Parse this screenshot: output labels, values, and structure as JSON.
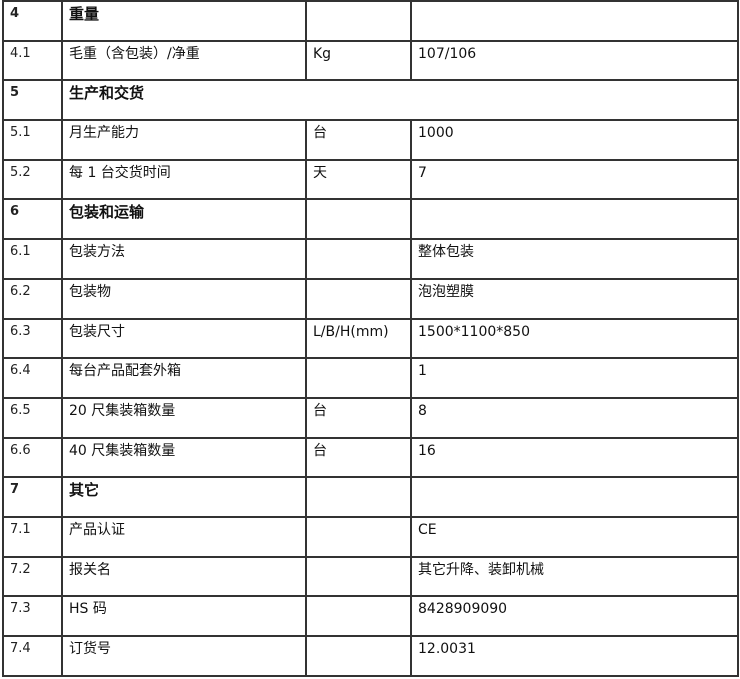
{
  "rows": [
    {
      "no": "4",
      "name": "重量",
      "unit": "",
      "value": "",
      "section": true
    },
    {
      "no": "4.1",
      "name": "毛重（含包装）/净重",
      "unit": "Kg",
      "value": "107/106"
    },
    {
      "no": "5",
      "name": "生产和交货",
      "section": true,
      "span": true
    },
    {
      "no": "5.1",
      "name": "月生产能力",
      "unit": "台",
      "value": "1000"
    },
    {
      "no": "5.2",
      "name": "每 1 台交货时间",
      "unit": "天",
      "value": "7"
    },
    {
      "no": "6",
      "name": "包装和运输",
      "unit": "",
      "value": "",
      "section": true
    },
    {
      "no": "6.1",
      "name": "包装方法",
      "unit": "",
      "value": "整体包装"
    },
    {
      "no": "6.2",
      "name": "包装物",
      "unit": "",
      "value": "泡泡塑膜"
    },
    {
      "no": "6.3",
      "name": "包装尺寸",
      "unit": "L/B/H(mm)",
      "value": "1500*1100*850"
    },
    {
      "no": "6.4",
      "name": "每台产品配套外箱",
      "unit": "",
      "value": "1"
    },
    {
      "no": "6.5",
      "name": "20 尺集装箱数量",
      "unit": "台",
      "value": "8"
    },
    {
      "no": "6.6",
      "name": "40 尺集装箱数量",
      "unit": "台",
      "value": "16"
    },
    {
      "no": "7",
      "name": "其它",
      "unit": "",
      "value": "",
      "section": true
    },
    {
      "no": "7.1",
      "name": "产品认证",
      "unit": "",
      "value": "CE"
    },
    {
      "no": "7.2",
      "name": "报关名",
      "unit": "",
      "value": "其它升降、装卸机械"
    },
    {
      "no": "7.3",
      "name": "HS 码",
      "unit": "",
      "value": "8428909090"
    },
    {
      "no": "7.4",
      "name": "订货号",
      "unit": "",
      "value": "12.0031"
    }
  ]
}
